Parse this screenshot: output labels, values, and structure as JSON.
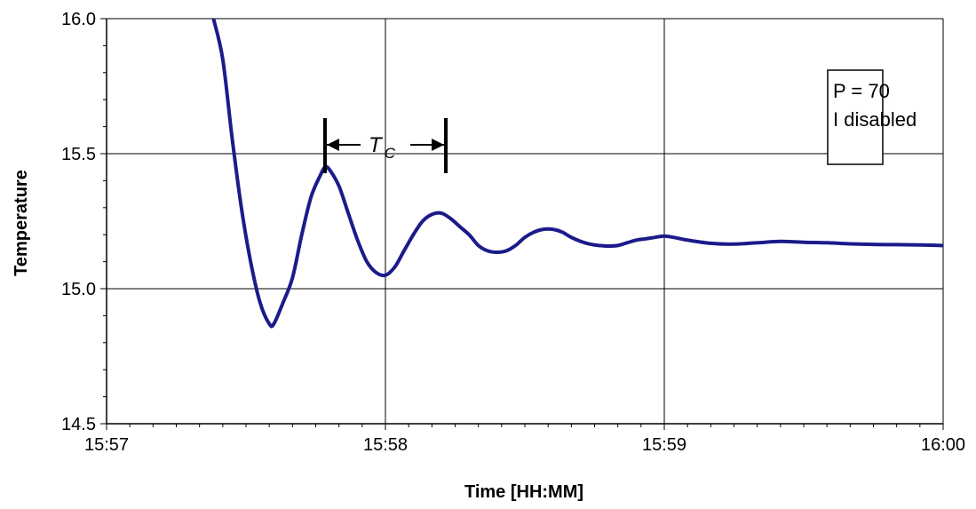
{
  "chart_data": {
    "type": "line",
    "title": "",
    "xlabel": "Time [HH:MM]",
    "ylabel": "Temperature",
    "x_unit": "HH:MM",
    "xlim": [
      "15:57",
      "16:00"
    ],
    "ylim": [
      14.5,
      16.0
    ],
    "x_ticks": [
      "15:57",
      "15:58",
      "15:59",
      "16:00"
    ],
    "y_ticks": [
      "14.5",
      "15.0",
      "15.5",
      "16.0"
    ],
    "grid": true,
    "line_color": "#1b1b8a",
    "series": [
      {
        "name": "",
        "x": [
          "15:57:23",
          "15:57:25",
          "15:57:27",
          "15:57:29",
          "15:57:31",
          "15:57:33",
          "15:57:35",
          "15:57:36",
          "15:57:38",
          "15:57:40",
          "15:57:42",
          "15:57:44",
          "15:57:46",
          "15:57:47",
          "15:57:48",
          "15:57:50",
          "15:57:52",
          "15:57:54",
          "15:57:56",
          "15:57:58",
          "15:58:00",
          "15:58:02",
          "15:58:04",
          "15:58:06",
          "15:58:08",
          "15:58:10",
          "15:58:12",
          "15:58:14",
          "15:58:16",
          "15:58:18",
          "15:58:20",
          "15:58:22",
          "15:58:24",
          "15:58:26",
          "15:58:28",
          "15:58:30",
          "15:58:32",
          "15:58:34",
          "15:58:36",
          "15:58:38",
          "15:58:40",
          "15:58:42",
          "15:58:44",
          "15:58:46",
          "15:58:48",
          "15:58:50",
          "15:58:52",
          "15:58:54",
          "15:58:56",
          "15:58:58",
          "15:59:00",
          "15:59:02",
          "15:59:05",
          "15:59:10",
          "15:59:15",
          "15:59:20",
          "15:59:25",
          "15:59:30",
          "15:59:35",
          "15:59:40",
          "15:59:45",
          "15:59:50",
          "15:59:55",
          "16:00:00"
        ],
        "y": [
          16.0,
          15.85,
          15.56,
          15.3,
          15.1,
          14.95,
          14.87,
          14.87,
          14.95,
          15.04,
          15.2,
          15.34,
          15.42,
          15.45,
          15.44,
          15.38,
          15.28,
          15.18,
          15.1,
          15.06,
          15.05,
          15.08,
          15.14,
          15.2,
          15.25,
          15.275,
          15.28,
          15.26,
          15.23,
          15.2,
          15.16,
          15.14,
          15.135,
          15.14,
          15.16,
          15.19,
          15.21,
          15.22,
          15.22,
          15.21,
          15.19,
          15.175,
          15.165,
          15.16,
          15.158,
          15.16,
          15.17,
          15.18,
          15.185,
          15.19,
          15.195,
          15.19,
          15.18,
          15.168,
          15.165,
          15.17,
          15.175,
          15.172,
          15.17,
          15.166,
          15.164,
          15.163,
          15.162,
          15.16
        ]
      }
    ]
  },
  "annotations": {
    "params": [
      "P = 70",
      "I  disabled"
    ],
    "period": {
      "label": "T",
      "subscript": "C",
      "from": "15:57:47",
      "to": "15:58:13"
    }
  }
}
